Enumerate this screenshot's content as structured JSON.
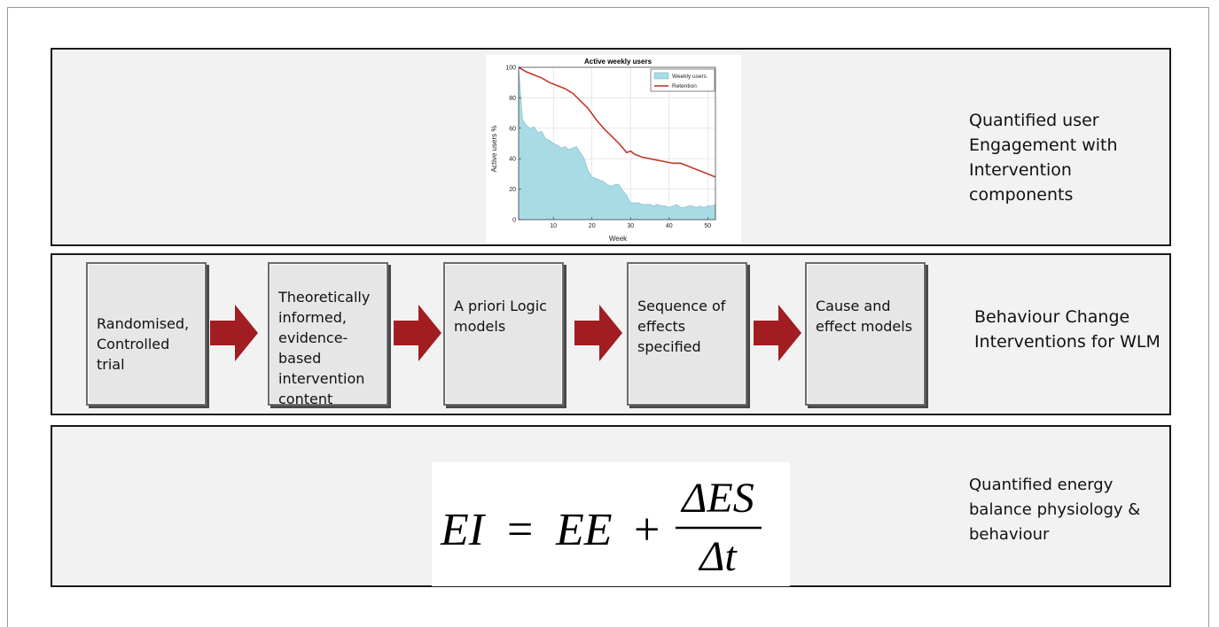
{
  "panels": {
    "engagement": {
      "label": "Quantified user Engagement with Intervention components"
    },
    "interventions": {
      "label": "Behaviour Change Interventions for WLM",
      "steps": [
        "Randomised, Controlled trial",
        "Theoretically informed, evidence-based intervention content",
        "A priori Logic models",
        "Sequence of effects specified",
        "Cause and effect models"
      ]
    },
    "energy": {
      "label": "Quantified energy balance physiology & behaviour",
      "equation": {
        "lhs": "EI",
        "equals": "=",
        "rhs_term": "EE",
        "plus": "+",
        "numerator": "ΔES",
        "denominator": "Δt"
      }
    }
  },
  "colors": {
    "arrow": "#a11d21",
    "area_fill": "#a8dbe6",
    "retention_line": "#c0392b"
  },
  "chart_data": {
    "type": "area",
    "title": "Active weekly users",
    "xlabel": "Week",
    "ylabel": "Active users %",
    "xlim": [
      1,
      52
    ],
    "ylim": [
      0,
      100
    ],
    "xticks": [
      10,
      20,
      30,
      40,
      50
    ],
    "yticks": [
      0,
      20,
      40,
      60,
      80,
      100
    ],
    "grid": true,
    "legend": "top-right",
    "series": [
      {
        "name": "Weekly users",
        "type": "area",
        "x": [
          1,
          2,
          3,
          4,
          5,
          6,
          7,
          8,
          9,
          10,
          11,
          12,
          13,
          14,
          15,
          16,
          17,
          18,
          19,
          20,
          21,
          22,
          23,
          24,
          25,
          26,
          27,
          28,
          29,
          30,
          31,
          32,
          33,
          34,
          35,
          36,
          37,
          38,
          39,
          40,
          41,
          42,
          43,
          44,
          45,
          46,
          47,
          48,
          49,
          50,
          51,
          52
        ],
        "values": [
          100,
          66,
          62,
          60,
          61,
          57,
          58,
          53,
          52,
          50,
          49,
          47,
          48,
          46,
          47,
          48,
          44,
          40,
          32,
          28,
          27,
          26,
          25,
          23,
          22,
          23,
          23,
          19,
          16,
          11,
          11,
          11,
          10,
          10,
          10,
          9,
          10,
          9,
          9,
          8,
          9,
          10,
          8,
          8,
          9,
          9,
          8,
          9,
          8,
          9,
          9,
          10
        ]
      },
      {
        "name": "Retention",
        "type": "line",
        "x": [
          1,
          3,
          5,
          7,
          9,
          11,
          13,
          15,
          17,
          19,
          21,
          23,
          25,
          27,
          29,
          30,
          31,
          33,
          35,
          37,
          39,
          41,
          43,
          45,
          47,
          49,
          51,
          52
        ],
        "values": [
          100,
          97,
          95,
          93,
          90,
          88,
          86,
          83,
          78,
          73,
          66,
          60,
          55,
          50,
          44,
          45,
          43,
          41,
          40,
          39,
          38,
          37,
          37,
          35,
          33,
          31,
          29,
          28
        ]
      }
    ]
  }
}
